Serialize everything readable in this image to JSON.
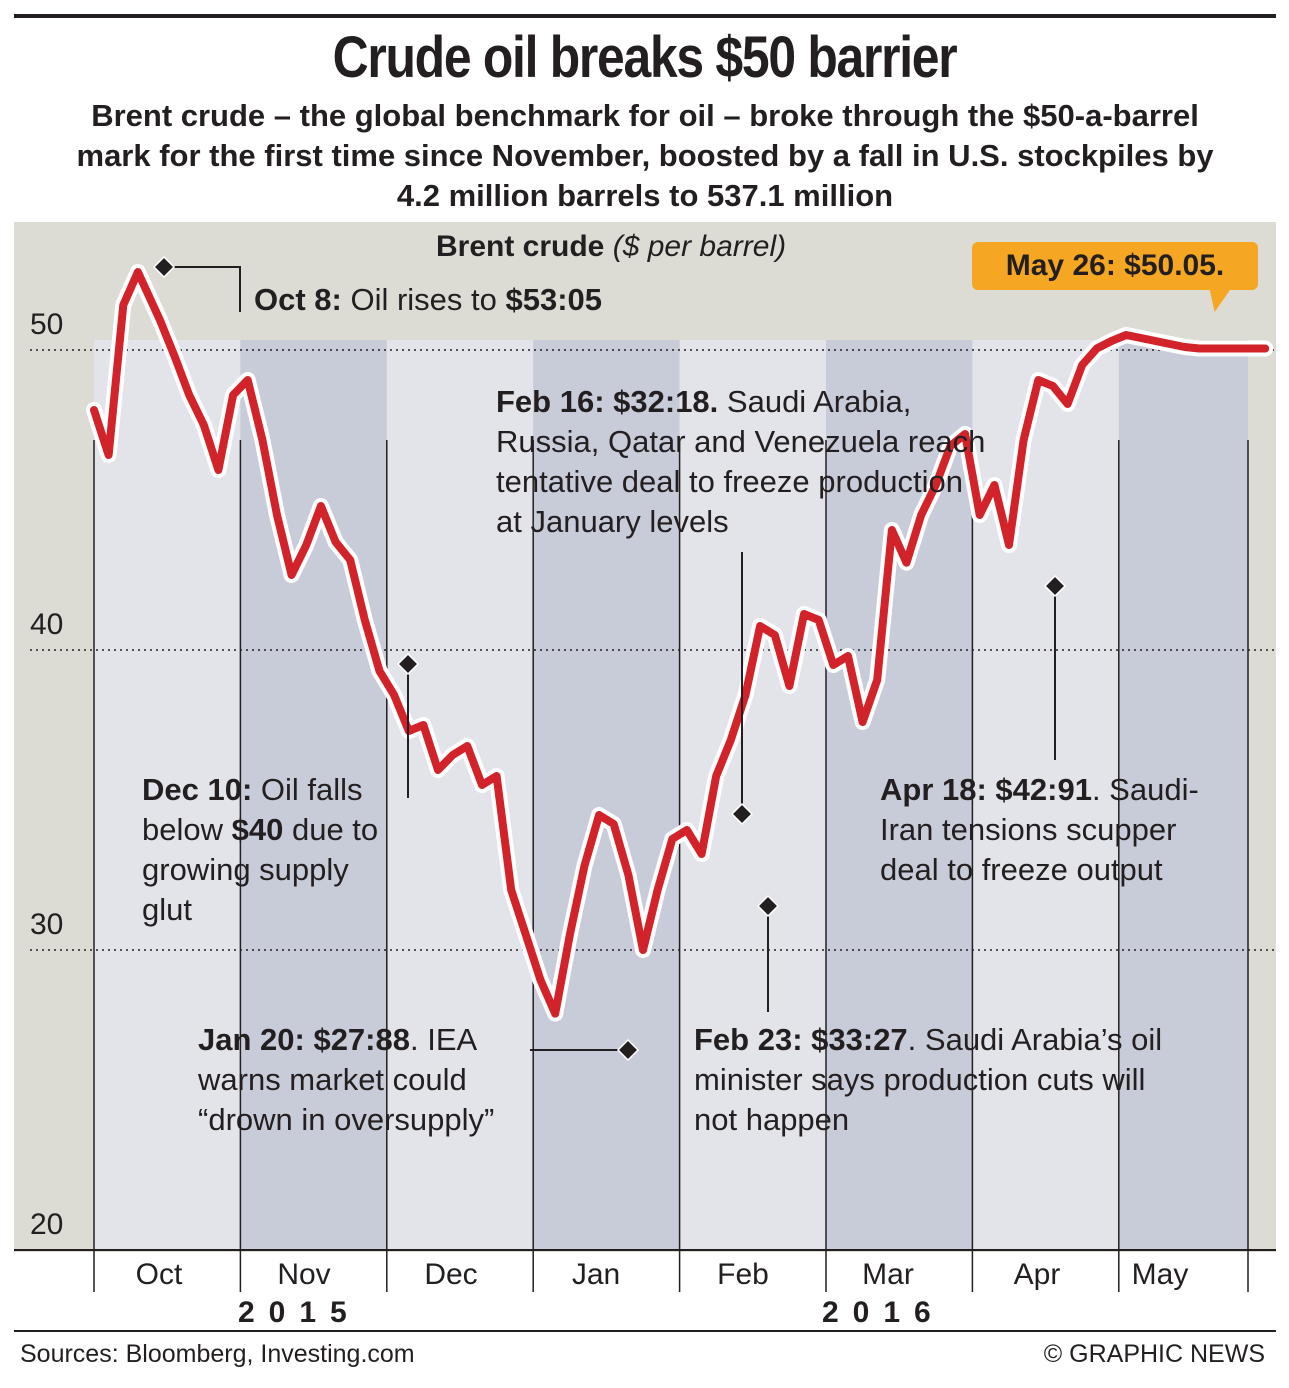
{
  "title": "Crude oil breaks $50 barrier",
  "subtitle": "Brent crude – the global benchmark for oil – broke through the $50-a-barrel mark for the first time since November, boosted by a fall in U.S. stockpiles by 4.2 million barrels to 537.1 million",
  "colors": {
    "line": "#d3232a",
    "band_dark": "#c8ccd8",
    "band_light": "#e2e4ea",
    "plot_bg": "#dcdcd4",
    "callout": "#f5a623"
  },
  "chart_data": {
    "type": "line",
    "title_bold": "Brent crude",
    "title_unit": "($ per barrel)",
    "xlabel": "",
    "ylabel": "$ per barrel",
    "ylim": [
      20,
      54
    ],
    "yticks": [
      "50",
      "40",
      "30",
      "20"
    ],
    "ytick_values": [
      50,
      40,
      30,
      20
    ],
    "months": [
      "Oct",
      "Nov",
      "Dec",
      "Jan",
      "Feb",
      "Mar",
      "Apr",
      "May"
    ],
    "years": [
      "2015",
      "2016"
    ],
    "series": [
      {
        "name": "Brent crude",
        "x": [
          0.0,
          0.1,
          0.2,
          0.3,
          0.45,
          0.55,
          0.65,
          0.75,
          0.85,
          0.95,
          1.05,
          1.15,
          1.25,
          1.35,
          1.45,
          1.55,
          1.65,
          1.75,
          1.85,
          1.95,
          2.05,
          2.15,
          2.25,
          2.35,
          2.45,
          2.55,
          2.65,
          2.75,
          2.85,
          2.95,
          3.05,
          3.15,
          3.25,
          3.35,
          3.45,
          3.55,
          3.65,
          3.75,
          3.85,
          3.95,
          4.05,
          4.15,
          4.25,
          4.35,
          4.45,
          4.55,
          4.65,
          4.75,
          4.85,
          4.95,
          5.05,
          5.15,
          5.25,
          5.35,
          5.45,
          5.55,
          5.65,
          5.75,
          5.85,
          5.95,
          6.05,
          6.15,
          6.25,
          6.35,
          6.45,
          6.55,
          6.65,
          6.75,
          6.85,
          6.95,
          7.05,
          7.15,
          7.25,
          7.35,
          7.45,
          7.55,
          7.65,
          7.75,
          7.85,
          7.95,
          8.0
        ],
        "values": [
          48.0,
          46.5,
          51.5,
          52.6,
          51.0,
          49.8,
          48.5,
          47.5,
          46.0,
          48.5,
          49.0,
          47.0,
          44.5,
          42.5,
          43.5,
          44.8,
          43.6,
          43.0,
          41.0,
          39.3,
          38.5,
          37.3,
          37.5,
          36.0,
          36.5,
          36.8,
          35.5,
          35.8,
          32.0,
          30.5,
          29.0,
          27.88,
          30.5,
          32.8,
          34.5,
          34.2,
          32.5,
          30.0,
          32.0,
          33.7,
          34.0,
          33.2,
          35.8,
          37.0,
          38.5,
          40.8,
          40.5,
          38.8,
          41.2,
          41.0,
          39.5,
          39.8,
          37.6,
          39.0,
          44.0,
          42.91,
          44.5,
          45.5,
          46.8,
          47.2,
          44.5,
          45.5,
          43.5,
          47.0,
          49.0,
          48.8,
          48.2,
          49.5,
          50.05,
          50.3,
          50.5,
          50.4,
          50.3,
          50.2,
          50.1,
          50.05,
          50.05,
          50.05,
          50.05,
          50.05,
          50.05
        ]
      }
    ],
    "annotations": [
      {
        "bold": "Oct 8:",
        "text": " Oil rises to ",
        "bold2": "$53:05",
        "text2": ""
      },
      {
        "bold": "Dec 10:",
        "text": " Oil falls below ",
        "bold2": "$40",
        "text2": " due to growing supply glut"
      },
      {
        "bold": "Jan 20: $27:88",
        "text": ". IEA warns market could “drown in oversupply”",
        "bold2": "",
        "text2": ""
      },
      {
        "bold": "Feb 16: $32:18.",
        "text": " Saudi Arabia, Russia, Qatar and Venezuela reach tentative deal to freeze production at January levels",
        "bold2": "",
        "text2": ""
      },
      {
        "bold": "Feb 23: $33:27",
        "text": ". Saudi Arabia’s oil minister says production cuts will not happen",
        "bold2": "",
        "text2": ""
      },
      {
        "bold": "Apr 18: $42:91",
        "text": ". Saudi-Iran tensions scupper deal to freeze output",
        "bold2": "",
        "text2": ""
      }
    ],
    "callout": "May 26: $50.05."
  },
  "footer": {
    "sources": "Sources: Bloomberg, Investing.com",
    "credit": "© GRAPHIC NEWS"
  }
}
